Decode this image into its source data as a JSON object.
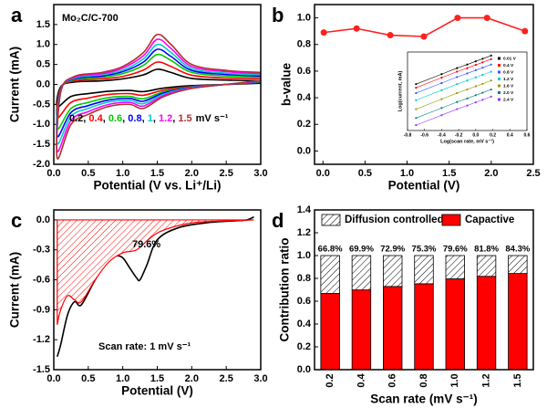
{
  "chart_data": [
    {
      "type": "line",
      "panel_label": "a",
      "xlabel": "Potential (V vs. Li⁺/Li)",
      "ylabel": "Current (mA)",
      "annotations": [
        "Mo₂C/C-700"
      ],
      "legend_separator": ", ",
      "legend_unit": "mV s⁻¹",
      "xlim": [
        0,
        3
      ],
      "ylim": [
        -2,
        2
      ],
      "xticks": [
        {
          "value": 0,
          "label": "0.0"
        },
        0.5,
        {
          "value": 1,
          "label": "1.0"
        },
        1.5,
        {
          "value": 2,
          "label": "2.0"
        },
        2.5,
        {
          "value": 3,
          "label": "3.0"
        }
      ],
      "yticks": [
        {
          "value": -2,
          "label": "-2.0"
        },
        -1.5,
        {
          "value": -1,
          "label": "-1.0"
        },
        -0.5,
        {
          "value": 0,
          "label": "0.0"
        },
        0.5,
        {
          "value": 1,
          "label": "1.0"
        },
        1.5
      ],
      "x": [
        3.0,
        2.5,
        2.0,
        1.6,
        1.3,
        1.1,
        0.8,
        0.5,
        0.25,
        0.05,
        0.1,
        0.3,
        0.7,
        1.0,
        1.3,
        1.5,
        1.7,
        2.0,
        2.5,
        3.0
      ],
      "series": [
        {
          "name": "0.2",
          "color": "#000000",
          "values": [
            0.03,
            0.0,
            -0.03,
            -0.09,
            -0.18,
            -0.15,
            -0.17,
            -0.23,
            -0.3,
            -0.56,
            -0.06,
            0.06,
            0.09,
            0.14,
            0.24,
            0.38,
            0.3,
            0.15,
            0.11,
            0.09
          ]
        },
        {
          "name": "0.4",
          "color": "#ff0000",
          "values": [
            0.05,
            0.0,
            -0.05,
            -0.14,
            -0.27,
            -0.23,
            -0.25,
            -0.34,
            -0.45,
            -0.83,
            -0.09,
            0.09,
            0.14,
            0.2,
            0.36,
            0.56,
            0.45,
            0.23,
            0.16,
            0.14
          ]
        },
        {
          "name": "0.6",
          "color": "#00cc00",
          "values": [
            0.06,
            0.0,
            -0.06,
            -0.18,
            -0.36,
            -0.3,
            -0.33,
            -0.45,
            -0.6,
            -1.11,
            -0.12,
            0.12,
            0.18,
            0.27,
            0.48,
            0.75,
            0.6,
            0.3,
            0.21,
            0.18
          ]
        },
        {
          "name": "0.8",
          "color": "#0000ff",
          "values": [
            0.07,
            0.0,
            -0.07,
            -0.21,
            -0.42,
            -0.35,
            -0.39,
            -0.53,
            -0.7,
            -1.3,
            -0.14,
            0.14,
            0.21,
            0.32,
            0.56,
            0.88,
            0.7,
            0.35,
            0.25,
            0.21
          ]
        },
        {
          "name": "1",
          "color": "#00cccc",
          "values": [
            0.08,
            0.0,
            -0.08,
            -0.24,
            -0.48,
            -0.4,
            -0.44,
            -0.6,
            -0.8,
            -1.48,
            -0.16,
            0.16,
            0.24,
            0.36,
            0.64,
            1.0,
            0.8,
            0.4,
            0.28,
            0.24
          ]
        },
        {
          "name": "1.2",
          "color": "#ff00ff",
          "values": [
            0.09,
            0.0,
            -0.09,
            -0.27,
            -0.54,
            -0.45,
            -0.5,
            -0.68,
            -0.9,
            -1.67,
            -0.18,
            0.18,
            0.27,
            0.41,
            0.72,
            1.13,
            0.9,
            0.45,
            0.32,
            0.27
          ]
        },
        {
          "name": "1.5",
          "color": "#b03030",
          "values": [
            0.1,
            0.0,
            -0.1,
            -0.3,
            -0.6,
            -0.5,
            -0.55,
            -0.75,
            -1.0,
            -1.85,
            -0.2,
            0.2,
            0.3,
            0.45,
            0.8,
            1.25,
            1.0,
            0.5,
            0.35,
            0.3
          ]
        }
      ]
    },
    {
      "type": "line",
      "panel_label": "b",
      "xlabel": "Potential (V)",
      "ylabel": "b-value",
      "markers": true,
      "xlim": [
        -0.1,
        2.5
      ],
      "ylim": [
        -0.1,
        1.1
      ],
      "xticks": [
        {
          "value": 0,
          "label": "0.0"
        },
        0.5,
        {
          "value": 1,
          "label": "1.0"
        },
        1.5,
        {
          "value": 2,
          "label": "2.0"
        },
        2.5
      ],
      "yticks": [
        {
          "value": 0,
          "label": "0.0"
        },
        0.2,
        0.4,
        0.6,
        0.8,
        {
          "value": 1,
          "label": "1.0"
        }
      ],
      "x": [
        0.01,
        0.4,
        0.8,
        1.2,
        1.6,
        1.95,
        2.4
      ],
      "series": [
        {
          "color": "#ff2020",
          "values": [
            0.89,
            0.92,
            0.87,
            0.86,
            1.0,
            1.0,
            0.9
          ]
        }
      ]
    },
    {
      "type": "line",
      "xlabel": "Log(scan rate, mV s⁻¹)",
      "ylabel": "Log(current, mA)",
      "markers": true,
      "xlim": [
        -0.8,
        0.6
      ],
      "ylim": [
        -2.2,
        0.0
      ],
      "xticks": [
        -0.8,
        -0.6,
        -0.4,
        -0.2,
        {
          "value": 0,
          "label": "0.0"
        },
        0.2,
        0.4,
        0.6
      ],
      "x": [
        -0.7,
        -0.4,
        -0.22,
        -0.1,
        0.0,
        0.08,
        0.18
      ],
      "series": [
        {
          "name": "0.01 V",
          "color": "#000000",
          "values": [
            -0.9,
            -0.62,
            -0.45,
            -0.35,
            -0.26,
            -0.19,
            -0.1
          ]
        },
        {
          "name": "0.4 V",
          "color": "#ff0000",
          "values": [
            -1.0,
            -0.72,
            -0.55,
            -0.45,
            -0.36,
            -0.29,
            -0.2
          ]
        },
        {
          "name": "0.8 V",
          "color": "#3355ff",
          "values": [
            -1.15,
            -0.87,
            -0.7,
            -0.6,
            -0.51,
            -0.44,
            -0.35
          ]
        },
        {
          "name": "1.2 V",
          "color": "#00cccc",
          "values": [
            -1.35,
            -1.07,
            -0.9,
            -0.8,
            -0.71,
            -0.64,
            -0.55
          ]
        },
        {
          "name": "1.6 V",
          "color": "#999900",
          "values": [
            -1.6,
            -1.32,
            -1.15,
            -1.05,
            -0.96,
            -0.89,
            -0.8
          ]
        },
        {
          "name": "2.0 V",
          "color": "#008080",
          "values": [
            -1.85,
            -1.57,
            -1.4,
            -1.3,
            -1.21,
            -1.14,
            -1.05
          ]
        },
        {
          "name": "2.4 V",
          "color": "#9933ff",
          "values": [
            -2.05,
            -1.77,
            -1.6,
            -1.5,
            -1.41,
            -1.34,
            -1.25
          ]
        }
      ]
    },
    {
      "type": "line",
      "panel_label": "c",
      "xlabel": "Potential (V)",
      "ylabel": "Current (mA)",
      "annotations": [
        "79.6%",
        "Scan rate: 1 mV s⁻¹"
      ],
      "xlim": [
        0,
        3
      ],
      "ylim": [
        -1.5,
        0.1
      ],
      "xticks": [
        {
          "value": 0,
          "label": "0.0"
        },
        0.5,
        {
          "value": 1,
          "label": "1.0"
        },
        1.5,
        {
          "value": 2,
          "label": "2.0"
        },
        2.5,
        {
          "value": 3,
          "label": "3.0"
        }
      ],
      "yticks": [
        {
          "value": 0,
          "label": "0.0"
        },
        -0.3,
        -0.6,
        -0.9,
        -1.2,
        -1.5
      ],
      "series": [
        {
          "color": "#000000",
          "x": [
            0.05,
            0.1,
            0.2,
            0.3,
            0.4,
            0.6,
            0.8,
            0.9,
            1.0,
            1.1,
            1.2,
            1.25,
            1.35,
            1.5,
            1.8,
            2.2,
            2.6,
            2.8,
            2.9
          ],
          "values": [
            -1.37,
            -1.25,
            -0.95,
            -0.82,
            -0.85,
            -0.6,
            -0.4,
            -0.36,
            -0.38,
            -0.48,
            -0.58,
            -0.6,
            -0.45,
            -0.2,
            -0.08,
            -0.03,
            -0.01,
            0.0,
            0.03
          ]
        },
        {
          "color": "#ff0000",
          "fill": true,
          "x": [
            0.05,
            0.1,
            0.2,
            0.3,
            0.4,
            0.6,
            0.8,
            1.0,
            1.2,
            1.4,
            1.6,
            2.0,
            2.5,
            2.9
          ],
          "values": [
            -1.05,
            -0.9,
            -0.76,
            -0.8,
            -0.82,
            -0.6,
            -0.42,
            -0.33,
            -0.3,
            -0.18,
            -0.1,
            -0.03,
            -0.01,
            0.0
          ]
        }
      ]
    },
    {
      "type": "bar",
      "panel_label": "d",
      "xlabel": "Scan rate (mV s⁻¹)",
      "ylabel": "Contribution ratio",
      "ylim": [
        0,
        1.4
      ],
      "yticks": [
        {
          "value": 0,
          "label": "0.0"
        },
        0.2,
        0.4,
        0.6,
        0.8,
        {
          "value": 1,
          "label": "1.0"
        },
        1.2,
        1.4
      ],
      "categories": [
        "0.2",
        "0.4",
        "0.6",
        "0.8",
        "1.0",
        "1.2",
        "1.5"
      ],
      "series": [
        {
          "name": "Diffusion controlled",
          "color": "#000000",
          "hatch": true,
          "values": [
            0.332,
            0.301,
            0.271,
            0.247,
            0.204,
            0.182,
            0.157
          ]
        },
        {
          "name": "Capactive",
          "color": "#ff0000",
          "values": [
            0.668,
            0.699,
            0.729,
            0.753,
            0.796,
            0.818,
            0.843
          ],
          "value_labels": [
            "66.8%",
            "69.9%",
            "72.9%",
            "75.3%",
            "79.6%",
            "81.8%",
            "84.3%"
          ]
        }
      ]
    }
  ]
}
